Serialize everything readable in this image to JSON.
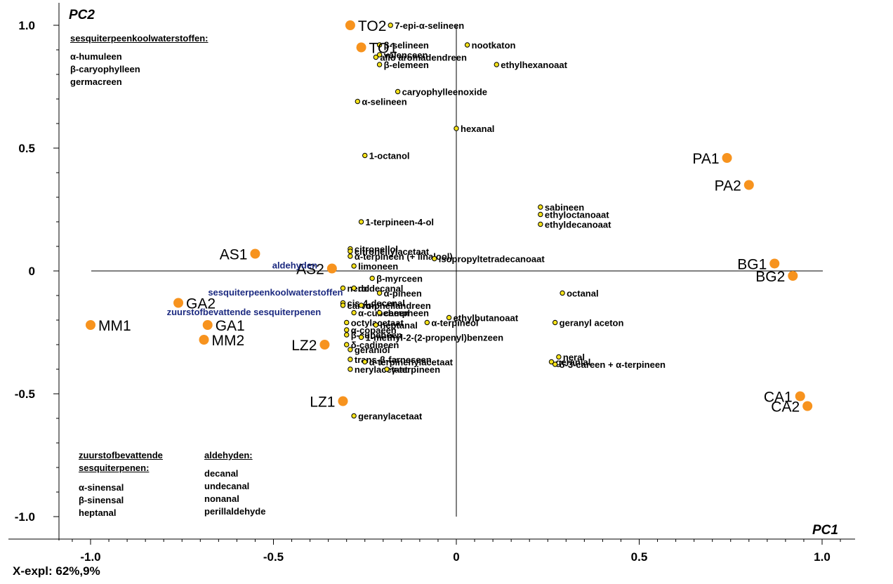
{
  "chart_data": {
    "type": "scatter",
    "title": "",
    "xlabel": "PC1",
    "ylabel": "PC2",
    "xlim": [
      -1.1,
      1.1
    ],
    "ylim": [
      -1.1,
      1.1
    ],
    "x_ticks": [
      -1.0,
      -0.5,
      0,
      0.5,
      1.0
    ],
    "y_ticks": [
      -1.0,
      -0.5,
      0,
      0.5,
      1.0
    ],
    "x_tick_labels": [
      "-1.0",
      "-0.5",
      "0",
      "0.5",
      "1.0"
    ],
    "y_tick_labels": [
      "-1.0",
      "-0.5",
      "0",
      "0.5",
      "1.0"
    ],
    "grid": false,
    "samples": [
      {
        "label": "TO2",
        "x": -0.29,
        "y": 1.0
      },
      {
        "label": "TO1",
        "x": -0.26,
        "y": 0.91
      },
      {
        "label": "PA1",
        "x": 0.74,
        "y": 0.46
      },
      {
        "label": "PA2",
        "x": 0.8,
        "y": 0.35
      },
      {
        "label": "AS1",
        "x": -0.55,
        "y": 0.07
      },
      {
        "label": "AS2",
        "x": -0.34,
        "y": 0.01
      },
      {
        "label": "BG1",
        "x": 0.87,
        "y": 0.03
      },
      {
        "label": "BG2",
        "x": 0.92,
        "y": -0.02
      },
      {
        "label": "GA2",
        "x": -0.76,
        "y": -0.13
      },
      {
        "label": "MM1",
        "x": -1.0,
        "y": -0.22
      },
      {
        "label": "GA1",
        "x": -0.68,
        "y": -0.22
      },
      {
        "label": "MM2",
        "x": -0.69,
        "y": -0.28
      },
      {
        "label": "LZ2",
        "x": -0.36,
        "y": -0.3
      },
      {
        "label": "LZ1",
        "x": -0.31,
        "y": -0.53
      },
      {
        "label": "CA1",
        "x": 0.94,
        "y": -0.51
      },
      {
        "label": "CA2",
        "x": 0.96,
        "y": -0.55
      }
    ],
    "compounds": [
      {
        "label": "7-epi-α-selineen",
        "x": -0.18,
        "y": 1.0
      },
      {
        "label": "β-selineen",
        "x": -0.21,
        "y": 0.92
      },
      {
        "label": "valenceen",
        "x": -0.21,
        "y": 0.88
      },
      {
        "label": "allo aromadendreen",
        "x": -0.22,
        "y": 0.87
      },
      {
        "label": "β-elemeen",
        "x": -0.21,
        "y": 0.84
      },
      {
        "label": "nootkaton",
        "x": 0.03,
        "y": 0.92
      },
      {
        "label": "ethylhexanoaat",
        "x": 0.11,
        "y": 0.84
      },
      {
        "label": "caryophylleenoxide",
        "x": -0.16,
        "y": 0.73
      },
      {
        "label": "α-selineen",
        "x": -0.27,
        "y": 0.69
      },
      {
        "label": "hexanal",
        "x": 0.0,
        "y": 0.58
      },
      {
        "label": "1-octanol",
        "x": -0.25,
        "y": 0.47
      },
      {
        "label": "sabineen",
        "x": 0.23,
        "y": 0.26
      },
      {
        "label": "ethyloctanoaat",
        "x": 0.23,
        "y": 0.23
      },
      {
        "label": "ethyldecanoaat",
        "x": 0.23,
        "y": 0.19
      },
      {
        "label": "1-terpineen-4-ol",
        "x": -0.26,
        "y": 0.2
      },
      {
        "label": "citronellol",
        "x": -0.29,
        "y": 0.09
      },
      {
        "label": "citronellylacetaat",
        "x": -0.29,
        "y": 0.08
      },
      {
        "label": "α-terpineen (+ linalool)",
        "x": -0.29,
        "y": 0.06
      },
      {
        "label": "isopropyltetradecanoaat",
        "x": -0.06,
        "y": 0.05
      },
      {
        "label": "limoneen",
        "x": -0.28,
        "y": 0.02
      },
      {
        "label": "β-myrceen",
        "x": -0.23,
        "y": -0.03
      },
      {
        "label": "nerol",
        "x": -0.31,
        "y": -0.07
      },
      {
        "label": "dodecanal",
        "x": -0.28,
        "y": -0.07
      },
      {
        "label": "α-pineen",
        "x": -0.21,
        "y": -0.09
      },
      {
        "label": "octanal",
        "x": 0.29,
        "y": -0.09
      },
      {
        "label": "cis-4-decenal",
        "x": -0.31,
        "y": -0.13
      },
      {
        "label": "carvon",
        "x": -0.31,
        "y": -0.14
      },
      {
        "label": "α-phellandreen",
        "x": -0.26,
        "y": -0.14
      },
      {
        "label": "α-cubebeen",
        "x": -0.28,
        "y": -0.17
      },
      {
        "label": "campheen",
        "x": -0.21,
        "y": -0.17
      },
      {
        "label": "ethylbutanoaat",
        "x": -0.02,
        "y": -0.19
      },
      {
        "label": "octylacetaat",
        "x": -0.3,
        "y": -0.21
      },
      {
        "label": "heptanal",
        "x": -0.22,
        "y": -0.22
      },
      {
        "label": "α-terpineol",
        "x": -0.08,
        "y": -0.21
      },
      {
        "label": "geranyl aceton",
        "x": 0.27,
        "y": -0.21
      },
      {
        "label": "α-copaeen",
        "x": -0.3,
        "y": -0.24
      },
      {
        "label": "β-cubebeen",
        "x": -0.3,
        "y": -0.26
      },
      {
        "label": "1-methyl-2-(2-propenyl)benzeen",
        "x": -0.26,
        "y": -0.27
      },
      {
        "label": "δ-cadineen",
        "x": -0.3,
        "y": -0.3
      },
      {
        "label": "geraniol",
        "x": -0.29,
        "y": -0.32
      },
      {
        "label": "trans-β-farneseen",
        "x": -0.29,
        "y": -0.36
      },
      {
        "label": "α-terpinenylacetaat",
        "x": -0.25,
        "y": -0.37
      },
      {
        "label": "nerylacetaat",
        "x": -0.29,
        "y": -0.4
      },
      {
        "label": "γ-terpineen",
        "x": -0.19,
        "y": -0.4
      },
      {
        "label": "geranial",
        "x": 0.26,
        "y": -0.37
      },
      {
        "label": "neral",
        "x": 0.28,
        "y": -0.35
      },
      {
        "label": "δ-3-careen + α-terpineen",
        "x": 0.27,
        "y": -0.38
      },
      {
        "label": "geranylacetaat",
        "x": -0.28,
        "y": -0.59
      }
    ],
    "categories": [
      {
        "label": "aldehyden",
        "x": -0.38,
        "y": 0.01
      },
      {
        "label": "sesquiterpeenkoolwaterstoffen",
        "x": -0.31,
        "y": -0.1
      },
      {
        "label": "zuurstofbevattende sesquiterpenen",
        "x": -0.37,
        "y": -0.18
      }
    ]
  },
  "notes": {
    "sesq_header": "sesquiterpeenkoolwaterstoffen:",
    "sesq_items": [
      "α-humuleen",
      "β-caryophylleen",
      "germacreen"
    ],
    "zuur_header_1": "zuurstofbevattende",
    "zuur_header_2": "sesquiterpenen:",
    "zuur_items": [
      "α-sinensal",
      "β-sinensal",
      "heptanal"
    ],
    "ald_header": "aldehyden:",
    "ald_items": [
      "decanal",
      "undecanal",
      "nonanal",
      "perillaldehyde"
    ]
  },
  "footer": "X-expl: 62%,9%",
  "colors": {
    "sample": "#f7931e",
    "compound_fill": "#f5e21a",
    "category": "#1c2a80"
  }
}
